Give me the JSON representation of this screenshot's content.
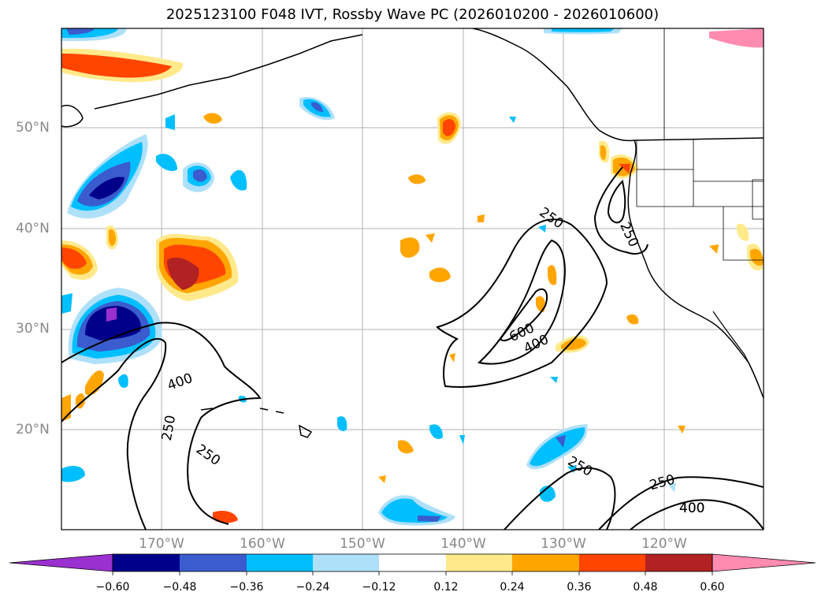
{
  "title": "2025123100 F048 IVT, Rossby Wave PC (2026010200 - 2026010600)",
  "map": {
    "lat_labels": [
      "50°N",
      "40°N",
      "30°N",
      "20°N"
    ],
    "lon_labels": [
      "170°W",
      "160°W",
      "150°W",
      "140°W",
      "130°W",
      "120°W"
    ],
    "contour_labels": [
      "250",
      "250",
      "250",
      "250",
      "400",
      "600",
      "400",
      "400",
      "250",
      "250",
      "400"
    ]
  },
  "colorbar": {
    "ticks": [
      "−0.60",
      "−0.48",
      "−0.36",
      "−0.24",
      "−0.12",
      "0.12",
      "0.24",
      "0.36",
      "0.48",
      "0.60"
    ],
    "colors": [
      "#9b30d0",
      "#00008b",
      "#3a5cce",
      "#00bfff",
      "#aee0fa",
      "#ffffff",
      "#ffe98a",
      "#ffa500",
      "#ff4500",
      "#b22222",
      "#ff8cb0"
    ]
  }
}
